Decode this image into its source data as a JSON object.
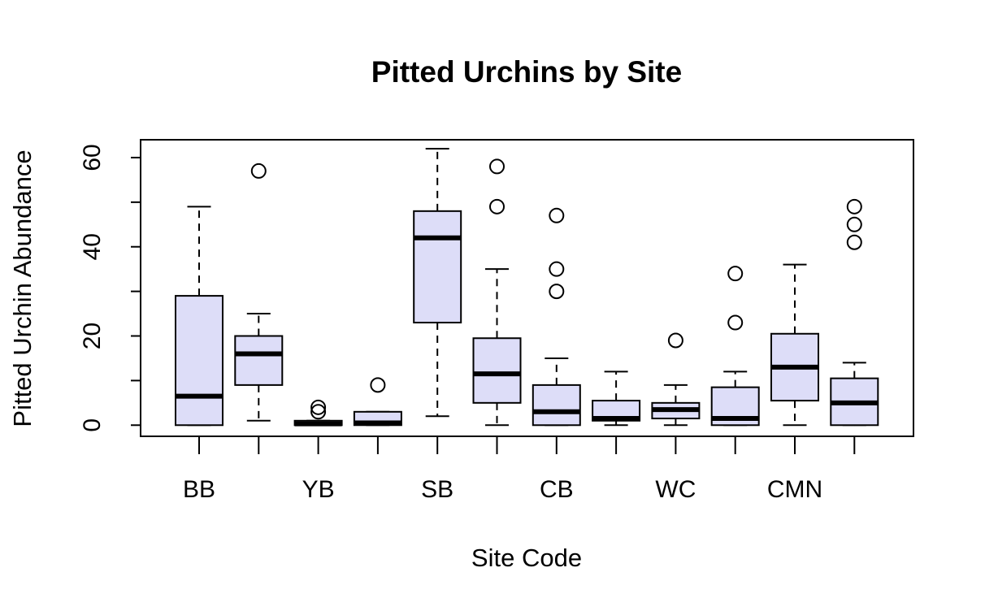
{
  "chart_data": {
    "type": "boxplot",
    "title": "Pitted Urchins by Site",
    "xlabel": "Site Code",
    "ylabel": "Pitted Urchin Abundance",
    "ylim": [
      -2.5,
      64
    ],
    "yticks": [
      0,
      20,
      40,
      60
    ],
    "box_fill": "#DDDDF8",
    "categories": [
      "BB",
      "",
      "YB",
      "",
      "SB",
      "",
      "CB",
      "",
      "WC",
      "",
      "CMN",
      ""
    ],
    "boxes": [
      {
        "whisker_low": 0,
        "q1": 0,
        "median": 6.5,
        "q3": 29,
        "whisker_high": 49,
        "outliers": []
      },
      {
        "whisker_low": 1,
        "q1": 9,
        "median": 16,
        "q3": 20,
        "whisker_high": 25,
        "outliers": [
          57
        ]
      },
      {
        "whisker_low": 0,
        "q1": 0,
        "median": 0.3,
        "q3": 1,
        "whisker_high": 1,
        "outliers": [
          3,
          4
        ]
      },
      {
        "whisker_low": 0,
        "q1": 0,
        "median": 0.5,
        "q3": 3,
        "whisker_high": 3,
        "outliers": [
          9
        ]
      },
      {
        "whisker_low": 2,
        "q1": 23,
        "median": 42,
        "q3": 48,
        "whisker_high": 62,
        "outliers": []
      },
      {
        "whisker_low": 0,
        "q1": 5,
        "median": 11.5,
        "q3": 19.5,
        "whisker_high": 35,
        "outliers": [
          49,
          58
        ]
      },
      {
        "whisker_low": 0,
        "q1": 0,
        "median": 3,
        "q3": 9,
        "whisker_high": 15,
        "outliers": [
          30,
          35,
          47
        ]
      },
      {
        "whisker_low": 0,
        "q1": 1,
        "median": 1.5,
        "q3": 5.5,
        "whisker_high": 12,
        "outliers": []
      },
      {
        "whisker_low": 0,
        "q1": 1.5,
        "median": 3.5,
        "q3": 5,
        "whisker_high": 9,
        "outliers": [
          19
        ]
      },
      {
        "whisker_low": 0,
        "q1": 0,
        "median": 1.5,
        "q3": 8.5,
        "whisker_high": 12,
        "outliers": [
          23,
          34
        ]
      },
      {
        "whisker_low": 0,
        "q1": 5.5,
        "median": 13,
        "q3": 20.5,
        "whisker_high": 36,
        "outliers": []
      },
      {
        "whisker_low": 0,
        "q1": 0,
        "median": 5,
        "q3": 10.5,
        "whisker_high": 14,
        "outliers": [
          41,
          45,
          49
        ]
      }
    ]
  }
}
